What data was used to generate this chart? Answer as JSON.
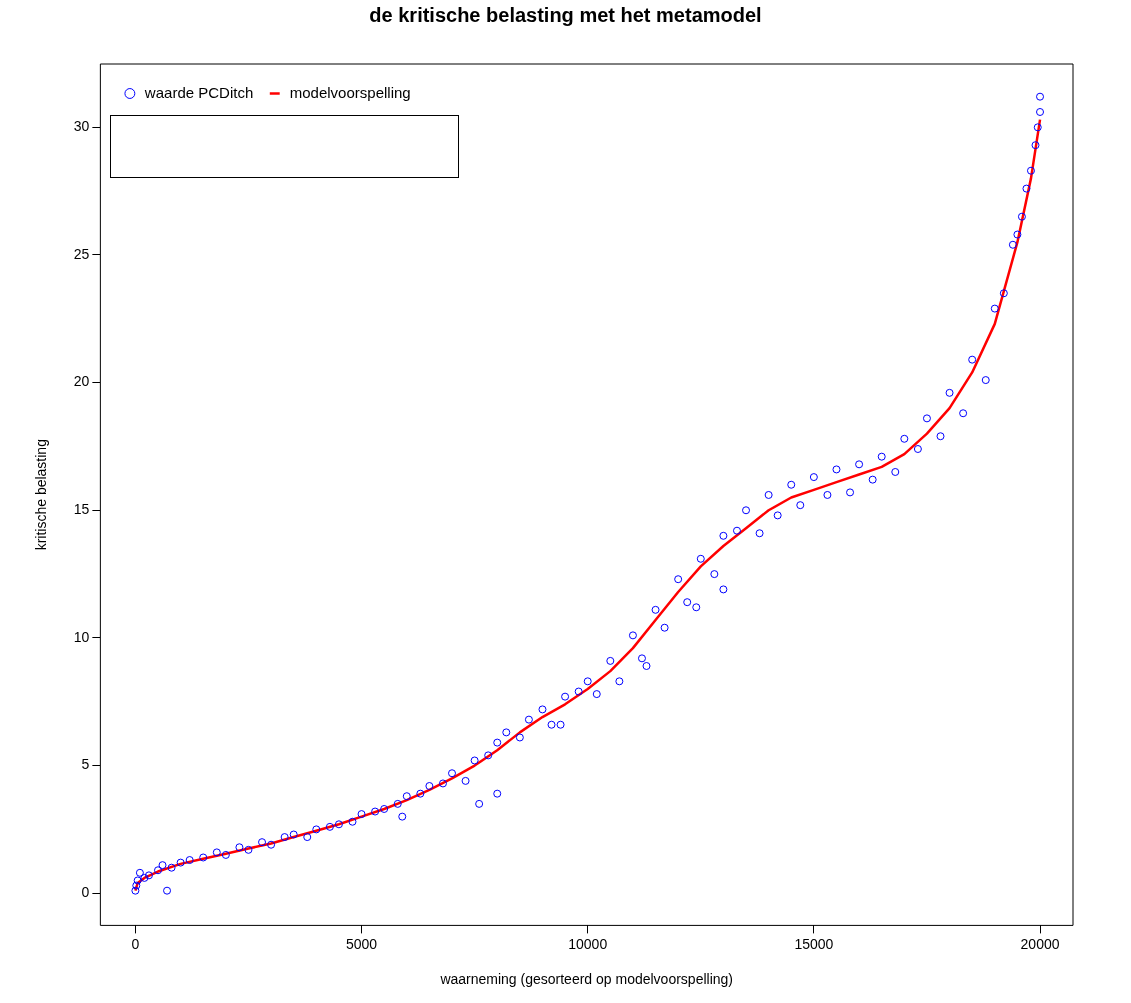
{
  "chart_data": {
    "type": "scatter",
    "title": "de kritische belasting met het metamodel",
    "xlabel": "waarneming (gesorteerd op modelvoorspelling)",
    "ylabel": "kritische belasting",
    "xlim": [
      -774,
      20729
    ],
    "ylim": [
      -1.26,
      32.48
    ],
    "xticks": [
      0,
      5000,
      10000,
      15000,
      20000
    ],
    "yticks": [
      0,
      5,
      10,
      15,
      20,
      25,
      30
    ],
    "grid": false,
    "legend": "top left",
    "series": [
      {
        "name": "waarde PCDitch",
        "color": "#0000ff",
        "marker": "circle",
        "x": [
          0,
          20,
          50,
          100,
          200,
          300,
          500,
          600,
          700,
          800,
          1000,
          1200,
          1500,
          1800,
          2000,
          2300,
          2500,
          2800,
          3000,
          3300,
          3500,
          3800,
          4000,
          4300,
          4500,
          4800,
          5000,
          5300,
          5500,
          5800,
          5900,
          6000,
          6300,
          6500,
          6800,
          7000,
          7300,
          7500,
          7600,
          7800,
          8000,
          8000,
          8200,
          8500,
          8700,
          9000,
          9200,
          9400,
          9500,
          9800,
          10000,
          10200,
          10500,
          10700,
          11000,
          11200,
          11300,
          11500,
          11700,
          12000,
          12200,
          12400,
          12500,
          12800,
          13000,
          13000,
          13300,
          13500,
          13800,
          14000,
          14200,
          14500,
          14700,
          15000,
          15300,
          15500,
          15800,
          16000,
          16300,
          16500,
          16800,
          17000,
          17300,
          17500,
          17800,
          18000,
          18300,
          18500,
          18800,
          19000,
          19200,
          19400,
          19500,
          19600,
          19700,
          19800,
          19900,
          19950,
          20000,
          20000
        ],
        "values": [
          0.1,
          0.3,
          0.5,
          0.8,
          0.6,
          0.7,
          0.9,
          1.1,
          0.1,
          1.0,
          1.2,
          1.3,
          1.4,
          1.6,
          1.5,
          1.8,
          1.7,
          2.0,
          1.9,
          2.2,
          2.3,
          2.2,
          2.5,
          2.6,
          2.7,
          2.8,
          3.1,
          3.2,
          3.3,
          3.5,
          3.0,
          3.8,
          3.9,
          4.2,
          4.3,
          4.7,
          4.4,
          5.2,
          3.5,
          5.4,
          5.9,
          3.9,
          6.3,
          6.1,
          6.8,
          7.2,
          6.6,
          6.6,
          7.7,
          7.9,
          8.3,
          7.8,
          9.1,
          8.3,
          10.1,
          9.2,
          8.9,
          11.1,
          10.4,
          12.3,
          11.4,
          11.2,
          13.1,
          12.5,
          14.0,
          11.9,
          14.2,
          15.0,
          14.1,
          15.6,
          14.8,
          16.0,
          15.2,
          16.3,
          15.6,
          16.6,
          15.7,
          16.8,
          16.2,
          17.1,
          16.5,
          17.8,
          17.4,
          18.6,
          17.9,
          19.6,
          18.8,
          20.9,
          20.1,
          22.9,
          23.5,
          25.4,
          25.8,
          26.5,
          27.6,
          28.3,
          29.3,
          30.0,
          31.2,
          30.6
        ]
      },
      {
        "name": "modelvoorspelling",
        "color": "#ff0000",
        "type": "line",
        "marker": "none",
        "x": [
          0,
          50,
          200,
          500,
          1000,
          1500,
          2000,
          2500,
          3000,
          3500,
          4000,
          4500,
          5000,
          5500,
          6000,
          6500,
          7000,
          7500,
          8000,
          8500,
          9000,
          9500,
          10000,
          10500,
          11000,
          11500,
          12000,
          12500,
          13000,
          13500,
          14000,
          14500,
          15000,
          15500,
          16000,
          16500,
          17000,
          17500,
          18000,
          18500,
          19000,
          19500,
          19800,
          20000
        ],
        "values": [
          0.1,
          0.4,
          0.6,
          0.85,
          1.15,
          1.35,
          1.55,
          1.75,
          1.95,
          2.2,
          2.45,
          2.7,
          3.0,
          3.3,
          3.65,
          4.05,
          4.5,
          5.0,
          5.6,
          6.3,
          6.9,
          7.4,
          8.0,
          8.7,
          9.6,
          10.7,
          11.8,
          12.8,
          13.6,
          14.3,
          15.0,
          15.5,
          15.8,
          16.1,
          16.4,
          16.7,
          17.2,
          18.0,
          19.0,
          20.4,
          22.3,
          25.5,
          28.0,
          30.3
        ]
      }
    ]
  }
}
